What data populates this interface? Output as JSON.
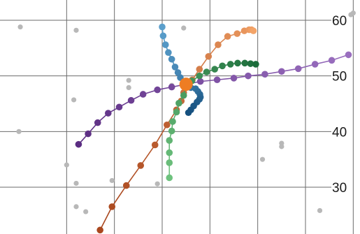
{
  "chart_data": {
    "type": "scatter",
    "xlim": [
      0,
      7.6
    ],
    "ylim": [
      22,
      63
    ],
    "x_gridlines": [
      1,
      2,
      3,
      4,
      5,
      6,
      7
    ],
    "y_ticks": [
      30,
      40,
      50,
      60
    ],
    "y_tick_labels": [
      "30",
      "40",
      "50",
      "60"
    ],
    "y_axis_position": "right",
    "grid": true,
    "legend": "none",
    "center": {
      "x": 3.5,
      "y": 48.5,
      "color": "#ee7d23"
    },
    "background_points": {
      "color": "#b8b8b8",
      "points": [
        [
          0.03,
          58.8
        ],
        [
          1.2,
          58.2
        ],
        [
          3.45,
          58.6
        ],
        [
          6.95,
          61
        ],
        [
          7.0,
          61.3
        ],
        [
          2.3,
          49.2
        ],
        [
          2.3,
          47.9
        ],
        [
          3.2,
          48.3
        ],
        [
          1.15,
          45.7
        ],
        [
          0.0,
          40.0
        ],
        [
          5.5,
          37.9
        ],
        [
          5.5,
          37.3
        ],
        [
          5.1,
          35.0
        ],
        [
          1.0,
          34.0
        ],
        [
          1.2,
          30.7
        ],
        [
          1.95,
          31.2
        ],
        [
          2.9,
          30.6
        ],
        [
          1.2,
          26.5
        ],
        [
          1.4,
          25.6
        ],
        [
          6.3,
          25.8
        ]
      ]
    },
    "series": [
      {
        "color": "#9a6fbf",
        "dark_color": "#5b2d82",
        "points": [
          [
            1.25,
            37.7
          ],
          [
            1.45,
            39.6
          ],
          [
            1.65,
            41.6
          ],
          [
            1.87,
            43.3
          ],
          [
            2.1,
            44.4
          ],
          [
            2.35,
            45.6
          ],
          [
            2.6,
            46.7
          ],
          [
            2.9,
            47.5
          ],
          [
            3.2,
            48.0
          ],
          [
            3.5,
            48.5
          ],
          [
            3.8,
            49.0
          ],
          [
            4.15,
            49.3
          ],
          [
            4.5,
            49.6
          ],
          [
            4.8,
            50.0
          ],
          [
            5.15,
            50.3
          ],
          [
            5.5,
            50.8
          ],
          [
            5.85,
            51.3
          ],
          [
            6.2,
            52.1
          ],
          [
            6.55,
            52.8
          ],
          [
            6.9,
            53.8
          ]
        ]
      },
      {
        "color": "#f4a468",
        "dark_color": "#a9471e",
        "points": [
          [
            1.7,
            22.3
          ],
          [
            1.95,
            26.5
          ],
          [
            2.25,
            30.3
          ],
          [
            2.55,
            33.9
          ],
          [
            2.85,
            37.6
          ],
          [
            3.1,
            41.2
          ],
          [
            3.3,
            43.9
          ],
          [
            3.4,
            45.5
          ],
          [
            3.45,
            47.0
          ],
          [
            3.5,
            48.5
          ],
          [
            3.63,
            49.3
          ],
          [
            3.78,
            51.2
          ],
          [
            3.97,
            53.5
          ],
          [
            4.17,
            55.6
          ],
          [
            4.37,
            57.1
          ],
          [
            4.57,
            57.6
          ],
          [
            4.72,
            58.1
          ],
          [
            4.82,
            58.3
          ],
          [
            4.87,
            58.3
          ],
          [
            4.91,
            58.1
          ]
        ]
      },
      {
        "color": "#6ec27e",
        "dark_color": "#1b6b3a",
        "points": [
          [
            3.15,
            31.7
          ],
          [
            3.15,
            34.4
          ],
          [
            3.15,
            36.2
          ],
          [
            3.15,
            38.4
          ],
          [
            3.2,
            40.1
          ],
          [
            3.22,
            41.8
          ],
          [
            3.3,
            43.5
          ],
          [
            3.35,
            45.1
          ],
          [
            3.45,
            46.5
          ],
          [
            3.5,
            48.5
          ],
          [
            3.62,
            49.1
          ],
          [
            3.78,
            50.0
          ],
          [
            3.93,
            50.7
          ],
          [
            4.1,
            51.2
          ],
          [
            4.26,
            51.8
          ],
          [
            4.43,
            52.1
          ],
          [
            4.58,
            52.3
          ],
          [
            4.73,
            52.3
          ],
          [
            4.85,
            52.2
          ],
          [
            4.96,
            52.1
          ]
        ]
      },
      {
        "color": "#5b9fcc",
        "dark_color": "#15507f",
        "points": [
          [
            3.0,
            58.8
          ],
          [
            3.02,
            57.2
          ],
          [
            3.07,
            55.6
          ],
          [
            3.13,
            54.2
          ],
          [
            3.2,
            53.0
          ],
          [
            3.27,
            51.6
          ],
          [
            3.33,
            50.6
          ],
          [
            3.38,
            49.7
          ],
          [
            3.45,
            49.0
          ],
          [
            3.5,
            48.5
          ],
          [
            3.6,
            47.9
          ],
          [
            3.7,
            47.7
          ],
          [
            3.75,
            47.2
          ],
          [
            3.79,
            46.7
          ],
          [
            3.8,
            46.2
          ],
          [
            3.78,
            45.8
          ],
          [
            3.73,
            45.3
          ],
          [
            3.66,
            44.6
          ],
          [
            3.6,
            43.9
          ],
          [
            3.55,
            43.4
          ]
        ]
      }
    ]
  }
}
